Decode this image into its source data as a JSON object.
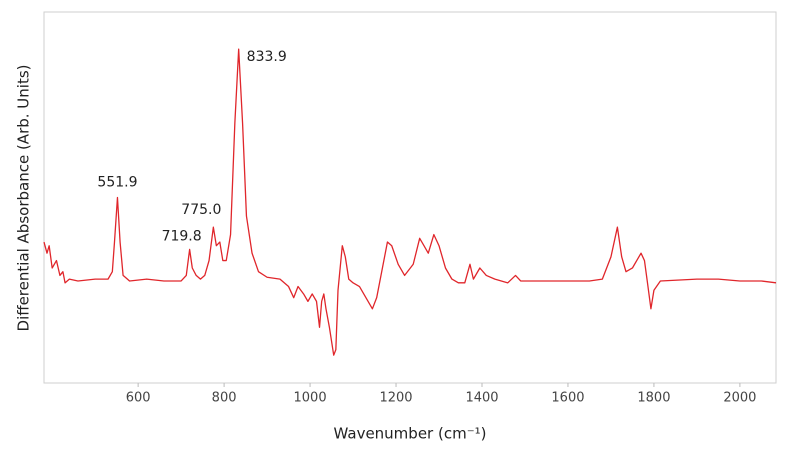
{
  "chart_data": {
    "type": "line",
    "x_label": "Wavenumber (cm⁻¹)",
    "y_label": "Differential Absorbance (Arb. Units)",
    "color": "#e0262b",
    "xlim": [
      381,
      2084
    ],
    "ylim": [
      0,
      100
    ],
    "xticks": [
      600,
      800,
      1000,
      1200,
      1400,
      1600,
      1800,
      2000
    ],
    "annotations": [
      {
        "text": "551.9",
        "x": 551.9,
        "y": 50
      },
      {
        "text": "719.8",
        "x": 719.8,
        "y": 36
      },
      {
        "text": "775.0",
        "x": 775,
        "y": 42
      },
      {
        "text": "833.9",
        "x": 833.9,
        "y": 90
      }
    ],
    "x": [
      381,
      388,
      393,
      400,
      410,
      418,
      425,
      430,
      440,
      460,
      500,
      530,
      540,
      545,
      551.9,
      558,
      565,
      580,
      620,
      660,
      700,
      712,
      719.8,
      726,
      735,
      745,
      755,
      765,
      775,
      782,
      790,
      797,
      805,
      815,
      825,
      833.9,
      843,
      852,
      865,
      880,
      900,
      930,
      950,
      962,
      972,
      985,
      995,
      1005,
      1015,
      1022,
      1027,
      1032,
      1037,
      1045,
      1055,
      1060,
      1065,
      1075,
      1082,
      1090,
      1100,
      1115,
      1130,
      1145,
      1155,
      1170,
      1180,
      1190,
      1205,
      1220,
      1240,
      1255,
      1265,
      1275,
      1288,
      1300,
      1315,
      1330,
      1345,
      1360,
      1372,
      1380,
      1395,
      1410,
      1430,
      1460,
      1478,
      1490,
      1550,
      1600,
      1650,
      1680,
      1700,
      1715,
      1725,
      1735,
      1750,
      1760,
      1770,
      1778,
      1785,
      1793,
      1800,
      1815,
      1900,
      1950,
      2000,
      2050,
      2084
    ],
    "values": [
      38,
      35,
      37,
      31,
      33,
      29,
      30,
      27,
      28,
      27.5,
      28,
      28,
      30,
      38,
      50,
      38,
      29,
      27.5,
      28,
      27.5,
      27.5,
      29,
      36,
      31,
      29,
      28,
      29,
      33,
      42,
      37,
      38,
      33,
      33,
      40,
      70,
      90,
      70,
      45,
      35,
      30,
      28.5,
      28,
      26,
      23,
      26,
      24,
      22,
      24,
      22,
      15,
      22,
      24,
      20,
      15,
      7.5,
      9,
      25,
      37,
      34,
      28,
      27,
      26,
      23,
      20,
      23,
      32,
      38,
      37,
      32,
      29,
      32,
      39,
      37,
      35,
      40,
      37,
      31,
      28,
      27,
      27,
      32,
      28,
      31,
      29,
      28,
      27,
      29,
      27.5,
      27.5,
      27.5,
      27.5,
      28,
      34,
      42,
      34,
      30,
      31,
      33,
      35,
      33,
      27,
      20,
      25,
      27.5,
      28,
      28,
      27.5,
      27.5,
      27
    ]
  }
}
